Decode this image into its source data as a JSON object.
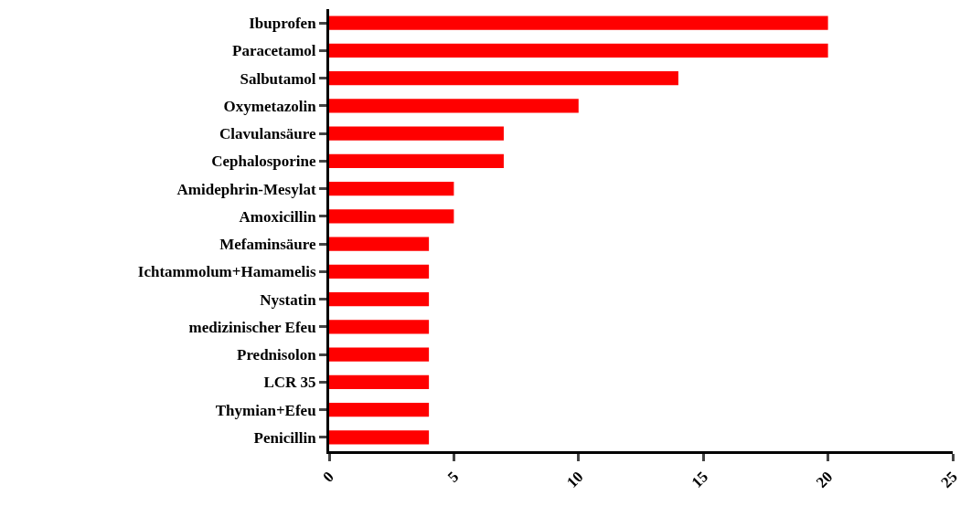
{
  "chart_data": {
    "type": "bar",
    "orientation": "horizontal",
    "categories": [
      "Ibuprofen",
      "Paracetamol",
      "Salbutamol",
      "Oxymetazolin",
      "Clavulansäure",
      "Cephalosporine",
      "Amidephrin-Mesylat",
      "Amoxicillin",
      "Mefaminsäure",
      "Ichtammolum+Hamamelis",
      "Nystatin",
      "medizinischer Efeu",
      "Prednisolon",
      "LCR 35",
      "Thymian+Efeu",
      "Penicillin"
    ],
    "values": [
      20,
      20,
      14,
      10,
      7,
      7,
      5,
      5,
      4,
      4,
      4,
      4,
      4,
      4,
      4,
      4
    ],
    "color": "#ff0000",
    "xlim": [
      0,
      25
    ],
    "xticks": [
      0,
      5,
      10,
      15,
      20,
      25
    ]
  }
}
